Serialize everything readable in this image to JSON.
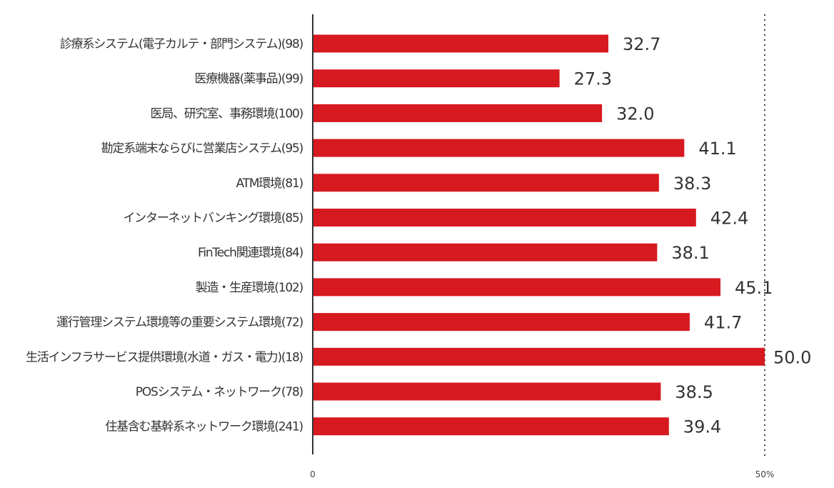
{
  "chart_data": {
    "type": "bar",
    "orientation": "horizontal",
    "title": "",
    "xlabel": "",
    "ylabel": "",
    "xlim": [
      0,
      50
    ],
    "x_ticks": [
      "0",
      "50%"
    ],
    "reference_line": {
      "value": 50,
      "style": "dotted"
    },
    "categories": [
      "診療系システム(電子カルテ・部門システム)(98)",
      "医療機器(薬事品)(99)",
      "医局、研究室、事務環境(100)",
      "勘定系端末ならびに営業店システム(95)",
      "ATM環境(81)",
      "インターネットバンキング環境(85)",
      "FinTech関連環境(84)",
      "製造・生産環境(102)",
      "運行管理システム環境等の重要システム環境(72)",
      "生活インフラサービス提供環境(水道・ガス・電力)(18)",
      "POSシステム・ネットワーク(78)",
      "住基含む基幹系ネットワーク環境(241)"
    ],
    "values": [
      32.7,
      27.3,
      32.0,
      41.1,
      38.3,
      42.4,
      38.1,
      45.1,
      41.7,
      50.0,
      38.5,
      39.4
    ],
    "value_labels": [
      "32.7",
      "27.3",
      "32.0",
      "41.1",
      "38.3",
      "42.4",
      "38.1",
      "45.1",
      "41.7",
      "50.0",
      "38.5",
      "39.4"
    ],
    "bar_color": "#d71920"
  }
}
